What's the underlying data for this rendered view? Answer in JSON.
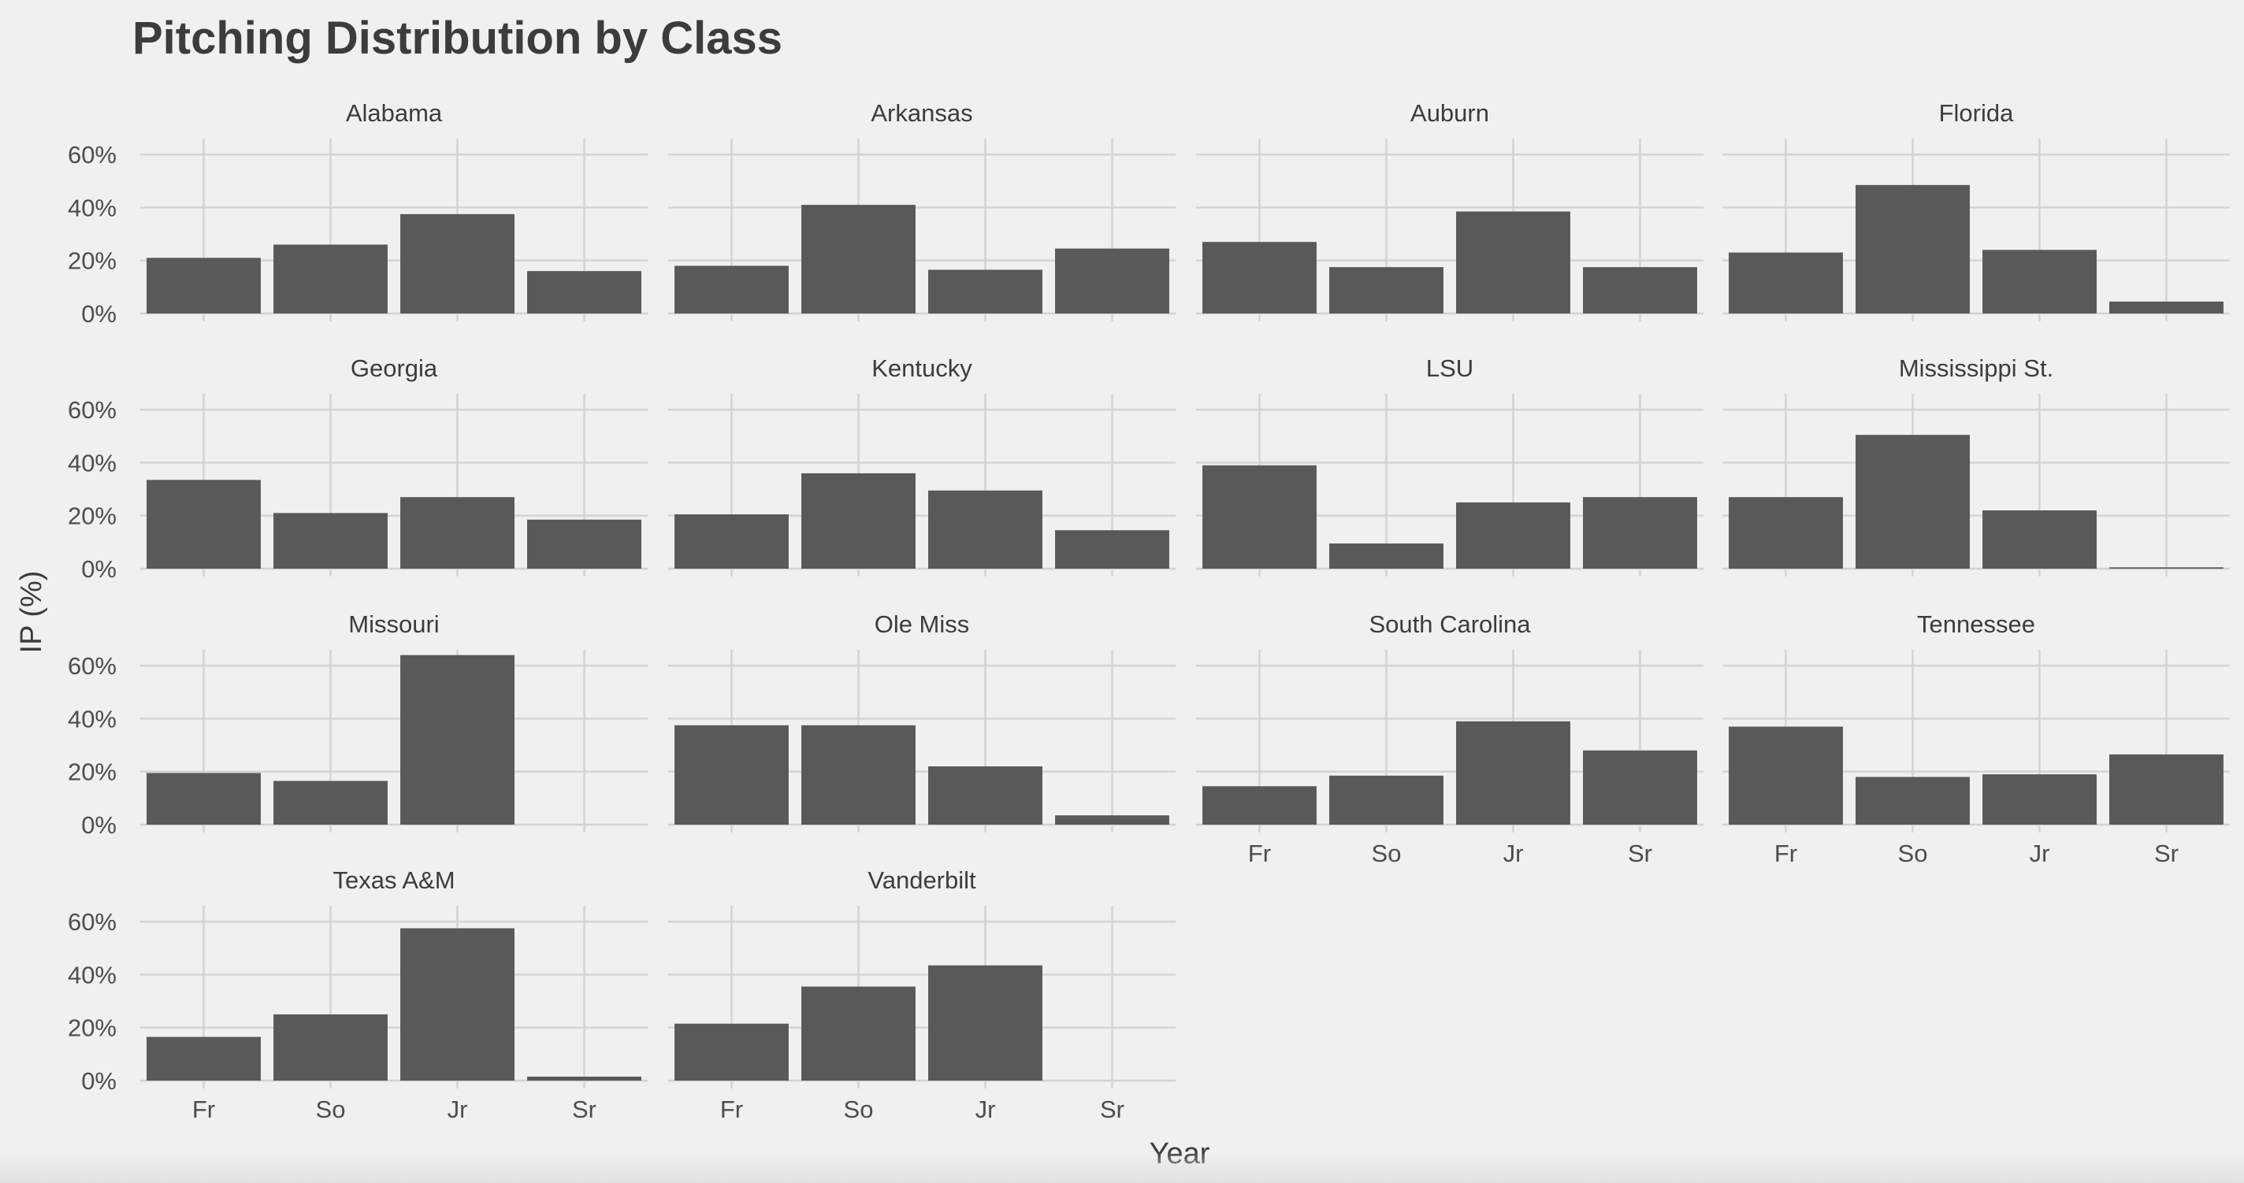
{
  "chart_data": {
    "type": "bar",
    "title": "Pitching Distribution by Class",
    "xlabel": "Year",
    "ylabel": "IP (%)",
    "categories": [
      "Fr",
      "So",
      "Jr",
      "Sr"
    ],
    "ylim": [
      0,
      0.66
    ],
    "y_ticks": [
      0,
      0.2,
      0.4,
      0.6
    ],
    "y_tick_labels": [
      "0%",
      "20%",
      "40%",
      "60%"
    ],
    "grid": true,
    "layout": "facet-wrap-4-columns",
    "bar_color": "#595959",
    "background_color": "#f0f0f0",
    "grid_color": "#d2d2d2",
    "panels": [
      {
        "name": "Alabama",
        "values": [
          0.21,
          0.26,
          0.375,
          0.16
        ]
      },
      {
        "name": "Arkansas",
        "values": [
          0.18,
          0.41,
          0.165,
          0.245
        ]
      },
      {
        "name": "Auburn",
        "values": [
          0.27,
          0.175,
          0.385,
          0.175
        ]
      },
      {
        "name": "Florida",
        "values": [
          0.23,
          0.485,
          0.24,
          0.045
        ]
      },
      {
        "name": "Georgia",
        "values": [
          0.335,
          0.21,
          0.27,
          0.185
        ]
      },
      {
        "name": "Kentucky",
        "values": [
          0.205,
          0.36,
          0.295,
          0.145
        ]
      },
      {
        "name": "LSU",
        "values": [
          0.39,
          0.095,
          0.25,
          0.27
        ]
      },
      {
        "name": "Mississippi St.",
        "values": [
          0.27,
          0.505,
          0.22,
          0.005
        ]
      },
      {
        "name": "Missouri",
        "values": [
          0.195,
          0.165,
          0.64,
          0.0
        ]
      },
      {
        "name": "Ole Miss",
        "values": [
          0.375,
          0.375,
          0.22,
          0.035
        ]
      },
      {
        "name": "South Carolina",
        "values": [
          0.145,
          0.185,
          0.39,
          0.28
        ]
      },
      {
        "name": "Tennessee",
        "values": [
          0.37,
          0.18,
          0.19,
          0.265
        ]
      },
      {
        "name": "Texas A&M",
        "values": [
          0.165,
          0.25,
          0.575,
          0.015
        ]
      },
      {
        "name": "Vanderbilt",
        "values": [
          0.215,
          0.355,
          0.435,
          0.0
        ]
      }
    ]
  }
}
